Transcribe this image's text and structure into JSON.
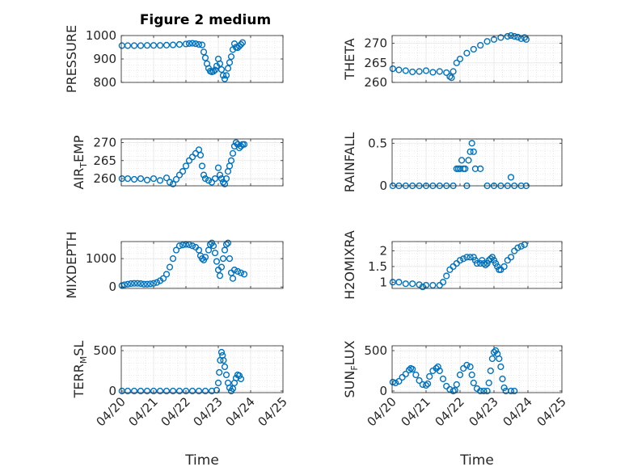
{
  "figure": {
    "title": "Figure 2 medium"
  },
  "chart_data": [
    {
      "type": "scatter",
      "ylabel": "PRESSURE",
      "xlim": [
        "04/20",
        "04/25"
      ],
      "ylim": [
        800,
        1000
      ],
      "yticks": [
        "800",
        "900",
        "1000"
      ],
      "xticks": [
        "04/20",
        "04/21",
        "04/22",
        "04/23",
        "04/24",
        "04/25"
      ],
      "xticklabels_visible": false,
      "grid": true,
      "points": [
        [
          0.02,
          957
        ],
        [
          0.2,
          957
        ],
        [
          0.4,
          957
        ],
        [
          0.6,
          957
        ],
        [
          0.8,
          958
        ],
        [
          1.0,
          958
        ],
        [
          1.2,
          958
        ],
        [
          1.4,
          959
        ],
        [
          1.6,
          960
        ],
        [
          1.8,
          962
        ],
        [
          2.0,
          964
        ],
        [
          2.1,
          966
        ],
        [
          2.2,
          967
        ],
        [
          2.3,
          965
        ],
        [
          2.4,
          962
        ],
        [
          2.5,
          960
        ],
        [
          2.55,
          930
        ],
        [
          2.6,
          905
        ],
        [
          2.65,
          880
        ],
        [
          2.7,
          860
        ],
        [
          2.75,
          848
        ],
        [
          2.8,
          845
        ],
        [
          2.85,
          847
        ],
        [
          2.9,
          853
        ],
        [
          2.95,
          870
        ],
        [
          3.0,
          900
        ],
        [
          3.05,
          880
        ],
        [
          3.1,
          855
        ],
        [
          3.15,
          830
        ],
        [
          3.2,
          815
        ],
        [
          3.25,
          830
        ],
        [
          3.3,
          860
        ],
        [
          3.35,
          885
        ],
        [
          3.4,
          910
        ],
        [
          3.45,
          940
        ],
        [
          3.5,
          965
        ],
        [
          3.55,
          950
        ],
        [
          3.6,
          948
        ],
        [
          3.65,
          955
        ],
        [
          3.7,
          962
        ],
        [
          3.75,
          970
        ]
      ]
    },
    {
      "type": "scatter",
      "ylabel": "THETA",
      "xlim": [
        "04/20",
        "04/25"
      ],
      "ylim": [
        260,
        272
      ],
      "yticks": [
        "260",
        "265",
        "270"
      ],
      "xticks": [
        "04/20",
        "04/21",
        "04/22",
        "04/23",
        "04/24",
        "04/25"
      ],
      "xticklabels_visible": false,
      "grid": true,
      "points": [
        [
          0.02,
          263.5
        ],
        [
          0.2,
          263.2
        ],
        [
          0.4,
          263.0
        ],
        [
          0.6,
          262.7
        ],
        [
          0.8,
          262.8
        ],
        [
          1.0,
          263.0
        ],
        [
          1.2,
          262.6
        ],
        [
          1.4,
          262.8
        ],
        [
          1.6,
          262.5
        ],
        [
          1.7,
          261.5
        ],
        [
          1.75,
          261.2
        ],
        [
          1.8,
          262.8
        ],
        [
          1.9,
          265.0
        ],
        [
          2.0,
          266.0
        ],
        [
          2.2,
          267.5
        ],
        [
          2.4,
          268.5
        ],
        [
          2.6,
          269.5
        ],
        [
          2.8,
          270.5
        ],
        [
          3.0,
          271.0
        ],
        [
          3.2,
          271.5
        ],
        [
          3.4,
          271.8
        ],
        [
          3.5,
          272.0
        ],
        [
          3.6,
          271.8
        ],
        [
          3.7,
          271.6
        ],
        [
          3.8,
          271.2
        ],
        [
          3.9,
          271.5
        ],
        [
          3.95,
          271.0
        ]
      ]
    },
    {
      "type": "scatter",
      "ylabel": "AIR_TEMP",
      "xlim": [
        "04/20",
        "04/25"
      ],
      "ylim": [
        258,
        271
      ],
      "yticks": [
        "260",
        "265",
        "270"
      ],
      "xticks": [
        "04/20",
        "04/21",
        "04/22",
        "04/23",
        "04/24",
        "04/25"
      ],
      "xticklabels_visible": false,
      "grid": true,
      "points": [
        [
          0.02,
          260.0
        ],
        [
          0.2,
          260.0
        ],
        [
          0.4,
          259.8
        ],
        [
          0.6,
          260.0
        ],
        [
          0.8,
          259.6
        ],
        [
          1.0,
          260.0
        ],
        [
          1.2,
          259.5
        ],
        [
          1.4,
          260.2
        ],
        [
          1.5,
          259.0
        ],
        [
          1.6,
          258.5
        ],
        [
          1.7,
          259.8
        ],
        [
          1.8,
          261.0
        ],
        [
          1.9,
          262.0
        ],
        [
          2.0,
          263.5
        ],
        [
          2.1,
          265.0
        ],
        [
          2.2,
          266.0
        ],
        [
          2.3,
          267.0
        ],
        [
          2.4,
          268.0
        ],
        [
          2.45,
          266.5
        ],
        [
          2.5,
          263.5
        ],
        [
          2.55,
          261.0
        ],
        [
          2.6,
          260.0
        ],
        [
          2.7,
          259.5
        ],
        [
          2.8,
          259.0
        ],
        [
          2.9,
          260.0
        ],
        [
          3.0,
          263.0
        ],
        [
          3.05,
          261.0
        ],
        [
          3.1,
          260.0
        ],
        [
          3.15,
          259.0
        ],
        [
          3.2,
          258.5
        ],
        [
          3.25,
          260.0
        ],
        [
          3.3,
          262.0
        ],
        [
          3.35,
          263.5
        ],
        [
          3.4,
          265.0
        ],
        [
          3.45,
          267.0
        ],
        [
          3.5,
          269.0
        ],
        [
          3.55,
          270.0
        ],
        [
          3.6,
          269.5
        ],
        [
          3.65,
          268.5
        ],
        [
          3.7,
          269.0
        ],
        [
          3.75,
          269.5
        ],
        [
          3.8,
          269.5
        ]
      ]
    },
    {
      "type": "scatter",
      "ylabel": "RAINFALL",
      "xlim": [
        "04/20",
        "04/25"
      ],
      "ylim": [
        0,
        0.55
      ],
      "yticks": [
        "0",
        "0.5"
      ],
      "xticks": [
        "04/20",
        "04/21",
        "04/22",
        "04/23",
        "04/24",
        "04/25"
      ],
      "xticklabels_visible": false,
      "grid": true,
      "points": [
        [
          0.02,
          0
        ],
        [
          0.2,
          0
        ],
        [
          0.4,
          0
        ],
        [
          0.6,
          0
        ],
        [
          0.8,
          0
        ],
        [
          1.0,
          0
        ],
        [
          1.2,
          0
        ],
        [
          1.4,
          0
        ],
        [
          1.6,
          0
        ],
        [
          1.8,
          0
        ],
        [
          1.9,
          0.2
        ],
        [
          1.95,
          0.2
        ],
        [
          2.0,
          0.2
        ],
        [
          2.05,
          0.3
        ],
        [
          2.1,
          0.2
        ],
        [
          2.15,
          0.2
        ],
        [
          2.2,
          0.0
        ],
        [
          2.25,
          0.3
        ],
        [
          2.3,
          0.4
        ],
        [
          2.35,
          0.5
        ],
        [
          2.4,
          0.4
        ],
        [
          2.45,
          0.2
        ],
        [
          2.6,
          0.2
        ],
        [
          2.8,
          0
        ],
        [
          3.0,
          0
        ],
        [
          3.2,
          0
        ],
        [
          3.4,
          0
        ],
        [
          3.5,
          0.1
        ],
        [
          3.6,
          0
        ],
        [
          3.8,
          0
        ],
        [
          3.95,
          0
        ]
      ]
    },
    {
      "type": "scatter",
      "ylabel": "MIXDEPTH",
      "xlim": [
        "04/20",
        "04/25"
      ],
      "ylim": [
        -50,
        1600
      ],
      "yticks": [
        "0",
        "1000"
      ],
      "xticks": [
        "04/20",
        "04/21",
        "04/22",
        "04/23",
        "04/24",
        "04/25"
      ],
      "xticklabels_visible": false,
      "grid": true,
      "points": [
        [
          0.02,
          50
        ],
        [
          0.1,
          80
        ],
        [
          0.2,
          100
        ],
        [
          0.3,
          120
        ],
        [
          0.4,
          130
        ],
        [
          0.5,
          130
        ],
        [
          0.6,
          120
        ],
        [
          0.7,
          100
        ],
        [
          0.8,
          100
        ],
        [
          0.9,
          110
        ],
        [
          1.0,
          130
        ],
        [
          1.1,
          160
        ],
        [
          1.2,
          220
        ],
        [
          1.3,
          300
        ],
        [
          1.4,
          450
        ],
        [
          1.5,
          700
        ],
        [
          1.6,
          1000
        ],
        [
          1.7,
          1300
        ],
        [
          1.8,
          1450
        ],
        [
          1.9,
          1480
        ],
        [
          2.0,
          1500
        ],
        [
          2.1,
          1490
        ],
        [
          2.2,
          1450
        ],
        [
          2.3,
          1400
        ],
        [
          2.4,
          1300
        ],
        [
          2.45,
          1100
        ],
        [
          2.5,
          1000
        ],
        [
          2.55,
          950
        ],
        [
          2.6,
          1050
        ],
        [
          2.7,
          1300
        ],
        [
          2.75,
          1500
        ],
        [
          2.8,
          1550
        ],
        [
          2.85,
          1450
        ],
        [
          2.9,
          1200
        ],
        [
          2.95,
          900
        ],
        [
          3.0,
          600
        ],
        [
          3.05,
          400
        ],
        [
          3.1,
          700
        ],
        [
          3.15,
          1000
        ],
        [
          3.2,
          1300
        ],
        [
          3.25,
          1500
        ],
        [
          3.3,
          1550
        ],
        [
          3.35,
          1000
        ],
        [
          3.4,
          500
        ],
        [
          3.45,
          300
        ],
        [
          3.5,
          600
        ],
        [
          3.6,
          550
        ],
        [
          3.7,
          500
        ],
        [
          3.8,
          450
        ]
      ]
    },
    {
      "type": "scatter",
      "ylabel": "H2OMIXRA",
      "xlim": [
        "04/20",
        "04/25"
      ],
      "ylim": [
        0.8,
        2.3
      ],
      "yticks": [
        "1",
        "1.5",
        "2"
      ],
      "xticks": [
        "04/20",
        "04/21",
        "04/22",
        "04/23",
        "04/24",
        "04/25"
      ],
      "xticklabels_visible": false,
      "grid": true,
      "points": [
        [
          0.02,
          1.0
        ],
        [
          0.2,
          1.0
        ],
        [
          0.4,
          0.95
        ],
        [
          0.6,
          0.95
        ],
        [
          0.8,
          0.92
        ],
        [
          0.9,
          0.85
        ],
        [
          1.0,
          0.9
        ],
        [
          1.2,
          0.9
        ],
        [
          1.4,
          0.9
        ],
        [
          1.5,
          1.0
        ],
        [
          1.6,
          1.2
        ],
        [
          1.7,
          1.4
        ],
        [
          1.8,
          1.5
        ],
        [
          1.9,
          1.6
        ],
        [
          2.0,
          1.7
        ],
        [
          2.1,
          1.75
        ],
        [
          2.2,
          1.8
        ],
        [
          2.3,
          1.8
        ],
        [
          2.4,
          1.8
        ],
        [
          2.45,
          1.7
        ],
        [
          2.5,
          1.6
        ],
        [
          2.6,
          1.6
        ],
        [
          2.65,
          1.7
        ],
        [
          2.7,
          1.6
        ],
        [
          2.75,
          1.55
        ],
        [
          2.8,
          1.6
        ],
        [
          2.85,
          1.7
        ],
        [
          2.9,
          1.75
        ],
        [
          2.95,
          1.8
        ],
        [
          3.0,
          1.7
        ],
        [
          3.05,
          1.6
        ],
        [
          3.1,
          1.5
        ],
        [
          3.15,
          1.4
        ],
        [
          3.2,
          1.4
        ],
        [
          3.3,
          1.5
        ],
        [
          3.4,
          1.7
        ],
        [
          3.5,
          1.8
        ],
        [
          3.6,
          2.0
        ],
        [
          3.7,
          2.1
        ],
        [
          3.8,
          2.15
        ],
        [
          3.9,
          2.2
        ]
      ]
    },
    {
      "type": "scatter",
      "ylabel": "TERR_MSL",
      "xlim": [
        "04/20",
        "04/25"
      ],
      "ylim": [
        -20,
        560
      ],
      "yticks": [
        "0",
        "500"
      ],
      "xticks": [
        "04/20",
        "04/21",
        "04/22",
        "04/23",
        "04/24",
        "04/25"
      ],
      "xticklabels": [
        "04/20",
        "04/21",
        "04/22",
        "04/23",
        "04/24",
        "04/25"
      ],
      "xticklabels_visible": true,
      "xlabel": "Time",
      "grid": true,
      "points": [
        [
          0.02,
          0
        ],
        [
          0.2,
          0
        ],
        [
          0.4,
          0
        ],
        [
          0.6,
          0
        ],
        [
          0.8,
          0
        ],
        [
          1.0,
          0
        ],
        [
          1.2,
          0
        ],
        [
          1.4,
          0
        ],
        [
          1.6,
          0
        ],
        [
          1.8,
          0
        ],
        [
          2.0,
          0
        ],
        [
          2.2,
          0
        ],
        [
          2.4,
          0
        ],
        [
          2.6,
          0
        ],
        [
          2.8,
          0
        ],
        [
          2.95,
          10
        ],
        [
          3.0,
          100
        ],
        [
          3.03,
          230
        ],
        [
          3.06,
          380
        ],
        [
          3.1,
          480
        ],
        [
          3.13,
          440
        ],
        [
          3.16,
          380
        ],
        [
          3.2,
          300
        ],
        [
          3.25,
          200
        ],
        [
          3.3,
          100
        ],
        [
          3.35,
          40
        ],
        [
          3.4,
          0
        ],
        [
          3.45,
          30
        ],
        [
          3.5,
          100
        ],
        [
          3.55,
          160
        ],
        [
          3.6,
          200
        ],
        [
          3.65,
          190
        ],
        [
          3.7,
          150
        ]
      ]
    },
    {
      "type": "scatter",
      "ylabel": "SUN_FLUX",
      "xlim": [
        "04/20",
        "04/25"
      ],
      "ylim": [
        -20,
        560
      ],
      "yticks": [
        "0",
        "500"
      ],
      "xticks": [
        "04/20",
        "04/21",
        "04/22",
        "04/23",
        "04/24",
        "04/25"
      ],
      "xticklabels": [
        "04/20",
        "04/21",
        "04/22",
        "04/23",
        "04/24",
        "04/25"
      ],
      "xticklabels_visible": true,
      "xlabel": "Time",
      "grid": true,
      "points": [
        [
          0.02,
          110
        ],
        [
          0.1,
          100
        ],
        [
          0.2,
          120
        ],
        [
          0.3,
          170
        ],
        [
          0.4,
          210
        ],
        [
          0.5,
          260
        ],
        [
          0.55,
          280
        ],
        [
          0.6,
          270
        ],
        [
          0.7,
          200
        ],
        [
          0.8,
          130
        ],
        [
          0.9,
          80
        ],
        [
          1.0,
          70
        ],
        [
          1.05,
          90
        ],
        [
          1.1,
          180
        ],
        [
          1.2,
          250
        ],
        [
          1.3,
          280
        ],
        [
          1.35,
          300
        ],
        [
          1.4,
          250
        ],
        [
          1.5,
          150
        ],
        [
          1.6,
          60
        ],
        [
          1.7,
          20
        ],
        [
          1.8,
          0
        ],
        [
          1.85,
          10
        ],
        [
          1.9,
          80
        ],
        [
          2.0,
          200
        ],
        [
          2.1,
          280
        ],
        [
          2.2,
          320
        ],
        [
          2.3,
          300
        ],
        [
          2.35,
          200
        ],
        [
          2.4,
          100
        ],
        [
          2.5,
          30
        ],
        [
          2.6,
          0
        ],
        [
          2.7,
          0
        ],
        [
          2.8,
          0
        ],
        [
          2.85,
          100
        ],
        [
          2.9,
          250
        ],
        [
          2.95,
          400
        ],
        [
          3.0,
          480
        ],
        [
          3.05,
          500
        ],
        [
          3.1,
          460
        ],
        [
          3.15,
          400
        ],
        [
          3.2,
          300
        ],
        [
          3.25,
          150
        ],
        [
          3.3,
          40
        ],
        [
          3.35,
          0
        ],
        [
          3.5,
          0
        ],
        [
          3.6,
          0
        ]
      ]
    }
  ]
}
